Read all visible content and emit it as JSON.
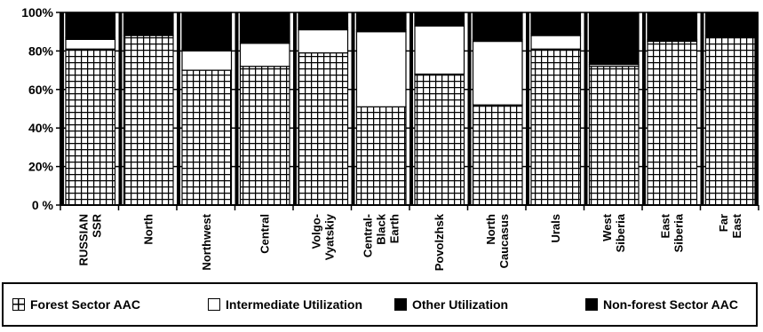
{
  "chart_data": {
    "type": "bar",
    "stacked": true,
    "categories": [
      [
        "RUSSIAN",
        "SSR"
      ],
      [
        "North"
      ],
      [
        "Northwest"
      ],
      [
        "Central"
      ],
      [
        "Volgo-",
        "Vyatskiy"
      ],
      [
        "Central-",
        "Black",
        "Earth"
      ],
      [
        "Povolzhsk"
      ],
      [
        "North",
        "Caucasus"
      ],
      [
        "Urals"
      ],
      [
        "West",
        "Siberia"
      ],
      [
        "East",
        "Siberia"
      ],
      [
        "Far",
        "East"
      ]
    ],
    "series": [
      {
        "name": "Forest Sector AAC",
        "values": [
          81,
          88,
          70,
          72,
          79,
          51,
          68,
          52,
          81,
          72,
          85,
          87
        ],
        "pattern": "grid"
      },
      {
        "name": "Intermediate Utilization",
        "values": [
          5,
          0,
          10,
          12,
          12,
          39,
          25,
          33,
          7,
          1,
          0,
          0
        ],
        "pattern": "white"
      },
      {
        "name": "Other Utilization",
        "values": [
          1,
          0,
          1,
          1,
          1,
          1,
          1,
          1,
          1,
          1,
          1,
          1
        ],
        "pattern": "black"
      },
      {
        "name": "Non-forest Sector AAC",
        "values": [
          13,
          12,
          19,
          15,
          8,
          9,
          6,
          14,
          11,
          26,
          14,
          12
        ],
        "pattern": "black"
      }
    ],
    "yticks": [
      "0 %",
      "20%",
      "40%",
      "60%",
      "80%",
      "100%"
    ],
    "ylim": [
      0,
      100
    ],
    "grid": true,
    "legend_position": "bottom"
  },
  "colors": {
    "fill_light": "#ffffff",
    "fill_dark": "#000000",
    "pattern_line": "#000000"
  }
}
